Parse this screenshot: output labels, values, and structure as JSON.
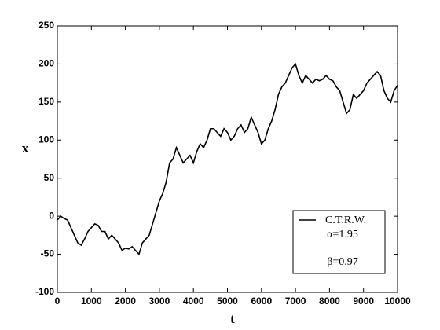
{
  "chart_data": {
    "type": "line",
    "x_label": "t",
    "y_label": "x",
    "x": [
      0,
      100,
      200,
      300,
      400,
      500,
      600,
      700,
      800,
      900,
      1000,
      1100,
      1200,
      1300,
      1400,
      1500,
      1600,
      1700,
      1800,
      1900,
      2000,
      2100,
      2200,
      2300,
      2400,
      2500,
      2600,
      2700,
      2800,
      2900,
      3000,
      3100,
      3200,
      3300,
      3400,
      3500,
      3600,
      3700,
      3800,
      3900,
      4000,
      4100,
      4200,
      4300,
      4400,
      4500,
      4600,
      4700,
      4800,
      4900,
      5000,
      5100,
      5200,
      5300,
      5400,
      5500,
      5600,
      5700,
      5800,
      5900,
      6000,
      6100,
      6200,
      6300,
      6400,
      6500,
      6600,
      6700,
      6800,
      6900,
      7000,
      7100,
      7200,
      7300,
      7400,
      7500,
      7600,
      7700,
      7800,
      7900,
      8000,
      8100,
      8200,
      8300,
      8400,
      8500,
      8600,
      8700,
      8800,
      8900,
      9000,
      9100,
      9200,
      9300,
      9400,
      9500,
      9600,
      9700,
      9800,
      9900,
      10000
    ],
    "series": [
      {
        "name": "C.T.R.W.",
        "color": "#000000",
        "values": [
          -5,
          0,
          -3,
          -5,
          -15,
          -25,
          -35,
          -38,
          -30,
          -20,
          -15,
          -10,
          -12,
          -20,
          -20,
          -30,
          -25,
          -30,
          -35,
          -45,
          -42,
          -43,
          -40,
          -45,
          -50,
          -35,
          -30,
          -25,
          -10,
          5,
          20,
          30,
          45,
          70,
          75,
          90,
          80,
          70,
          75,
          80,
          70,
          85,
          95,
          90,
          100,
          115,
          115,
          110,
          105,
          115,
          110,
          100,
          105,
          115,
          120,
          110,
          115,
          130,
          120,
          110,
          95,
          100,
          115,
          125,
          140,
          160,
          170,
          175,
          185,
          195,
          200,
          185,
          175,
          185,
          180,
          175,
          180,
          178,
          180,
          185,
          180,
          178,
          170,
          165,
          150,
          135,
          140,
          160,
          155,
          160,
          165,
          175,
          180,
          185,
          190,
          185,
          165,
          155,
          150,
          165,
          172
        ]
      }
    ],
    "annotations": [
      "α=1.95",
      "β=0.97"
    ],
    "xlim": [
      0,
      10000
    ],
    "ylim": [
      -100,
      250
    ],
    "xticks": [
      0,
      1000,
      2000,
      3000,
      4000,
      5000,
      6000,
      7000,
      8000,
      9000,
      10000
    ],
    "yticks": [
      -100,
      -50,
      0,
      50,
      100,
      150,
      200,
      250
    ],
    "grid": false,
    "legend": "lower right"
  }
}
